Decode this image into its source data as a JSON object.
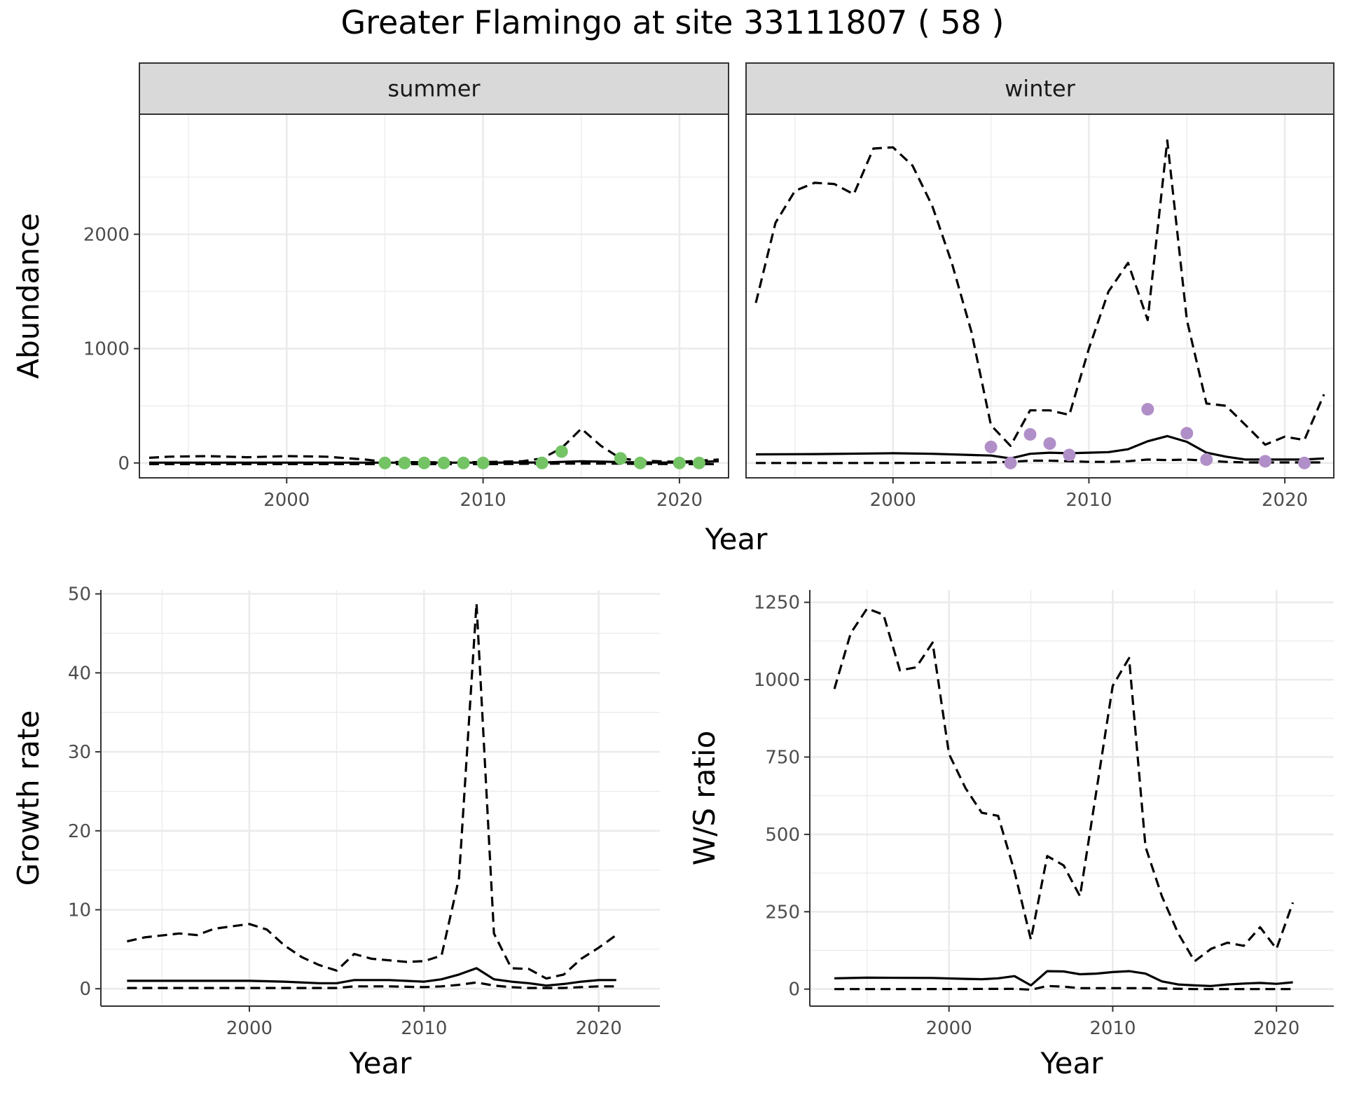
{
  "title": "Greater Flamingo at site 33111807 ( 58 )",
  "colors": {
    "summer_points": "#74c365",
    "winter_points": "#b08fc8",
    "strip_fill": "#d9d9d9"
  },
  "chart_data": [
    {
      "type": "line",
      "panel": "summer",
      "strip_label": "summer",
      "xlabel": "Year",
      "ylabel": "Abundance",
      "xlim": [
        1992.5,
        2022.5
      ],
      "ylim": [
        -130,
        3050
      ],
      "x_ticks": [
        2000,
        2010,
        2020
      ],
      "y_ticks": [
        0,
        1000,
        2000
      ],
      "grid": true,
      "series": [
        {
          "style": "solid",
          "x": [
            1993,
            1996,
            2000,
            2005,
            2010,
            2013,
            2014,
            2015,
            2016,
            2017,
            2018,
            2020,
            2022
          ],
          "y": [
            3,
            3,
            3,
            3,
            3,
            4,
            10,
            15,
            12,
            8,
            5,
            3,
            15
          ]
        },
        {
          "style": "dashed",
          "x": [
            1993,
            1994,
            1996,
            1998,
            2000,
            2002,
            2004,
            2005,
            2008,
            2010,
            2012,
            2013,
            2014,
            2015,
            2016,
            2017,
            2018,
            2020,
            2022
          ],
          "y": [
            45,
            55,
            60,
            50,
            60,
            55,
            30,
            10,
            5,
            8,
            15,
            40,
            130,
            300,
            150,
            40,
            20,
            10,
            30
          ]
        },
        {
          "style": "dashed",
          "x": [
            1993,
            2000,
            2010,
            2014,
            2016,
            2020,
            2022
          ],
          "y": [
            -10,
            -10,
            -10,
            -5,
            -5,
            -10,
            -10
          ]
        },
        {
          "style": "points",
          "x": [
            2005,
            2006,
            2007,
            2008,
            2009,
            2010,
            2013,
            2014,
            2017,
            2018,
            2020,
            2021
          ],
          "y": [
            0,
            0,
            0,
            0,
            0,
            0,
            0,
            100,
            40,
            0,
            0,
            0
          ]
        }
      ]
    },
    {
      "type": "line",
      "panel": "winter",
      "strip_label": "winter",
      "xlabel": "Year",
      "ylabel": "",
      "xlim": [
        1992.5,
        2022.5
      ],
      "ylim": [
        -130,
        3050
      ],
      "x_ticks": [
        2000,
        2010,
        2020
      ],
      "y_ticks": [
        0,
        1000,
        2000
      ],
      "grid": true,
      "series": [
        {
          "style": "solid",
          "x": [
            1993,
            1996,
            2000,
            2002,
            2004,
            2005,
            2006,
            2007,
            2008,
            2009,
            2010,
            2011,
            2012,
            2013,
            2014,
            2015,
            2016,
            2017,
            2018,
            2019,
            2020,
            2021,
            2022
          ],
          "y": [
            75,
            78,
            85,
            80,
            70,
            65,
            40,
            80,
            90,
            85,
            90,
            95,
            120,
            190,
            235,
            185,
            90,
            55,
            30,
            30,
            30,
            30,
            40
          ]
        },
        {
          "style": "dashed",
          "x": [
            1993,
            1994,
            1995,
            1996,
            1997,
            1998,
            1999,
            2000,
            2001,
            2002,
            2003,
            2004,
            2005,
            2006,
            2007,
            2008,
            2009,
            2010,
            2011,
            2012,
            2013,
            2014,
            2015,
            2016,
            2017,
            2018,
            2019,
            2020,
            2021,
            2022
          ],
          "y": [
            1400,
            2100,
            2380,
            2450,
            2440,
            2350,
            2750,
            2760,
            2600,
            2250,
            1750,
            1150,
            330,
            150,
            460,
            460,
            420,
            1000,
            1500,
            1750,
            1250,
            2820,
            1250,
            520,
            500,
            330,
            160,
            230,
            200,
            600
          ]
        },
        {
          "style": "dashed",
          "x": [
            1993,
            2000,
            2005,
            2006,
            2007,
            2008,
            2009,
            2010,
            2011,
            2012,
            2013,
            2014,
            2015,
            2016,
            2017,
            2018,
            2020,
            2022
          ],
          "y": [
            0,
            0,
            5,
            10,
            20,
            20,
            15,
            10,
            10,
            15,
            30,
            25,
            30,
            20,
            10,
            5,
            5,
            5
          ]
        },
        {
          "style": "points",
          "x": [
            2005,
            2006,
            2007,
            2008,
            2009,
            2013,
            2015,
            2016,
            2019,
            2021
          ],
          "y": [
            140,
            0,
            250,
            170,
            70,
            470,
            260,
            30,
            15,
            0
          ]
        }
      ]
    },
    {
      "type": "line",
      "panel": "growth",
      "xlabel": "Year",
      "ylabel": "Growth rate",
      "xlim": [
        1991.5,
        2023.5
      ],
      "ylim": [
        -2.2,
        50.5
      ],
      "x_ticks": [
        2000,
        2010,
        2020
      ],
      "y_ticks": [
        0,
        10,
        20,
        30,
        40,
        50
      ],
      "grid": true,
      "series": [
        {
          "style": "solid",
          "x": [
            1993,
            1995,
            2000,
            2002,
            2004,
            2005,
            2006,
            2008,
            2010,
            2011,
            2012,
            2013,
            2014,
            2015,
            2016,
            2017,
            2018,
            2019,
            2020,
            2021
          ],
          "y": [
            1,
            1,
            1,
            0.9,
            0.7,
            0.7,
            1.1,
            1.1,
            0.9,
            1.2,
            1.8,
            2.6,
            1.2,
            0.9,
            0.7,
            0.4,
            0.6,
            0.9,
            1.1,
            1.1
          ]
        },
        {
          "style": "dashed",
          "x": [
            1993,
            1994,
            1996,
            1997,
            1998,
            2000,
            2001,
            2002,
            2003,
            2004,
            2005,
            2006,
            2007,
            2008,
            2009,
            2010,
            2011,
            2012,
            2013,
            2014,
            2015,
            2016,
            2017,
            2018,
            2019,
            2020,
            2021
          ],
          "y": [
            6,
            6.5,
            7,
            6.8,
            7.6,
            8.2,
            7.5,
            5.5,
            4,
            3,
            2.3,
            4.4,
            3.8,
            3.6,
            3.4,
            3.5,
            4.2,
            14,
            48.8,
            7,
            2.6,
            2.5,
            1.3,
            1.8,
            3.8,
            5.2,
            6.8
          ]
        },
        {
          "style": "dashed",
          "x": [
            1993,
            1996,
            2000,
            2003,
            2005,
            2006,
            2008,
            2010,
            2011,
            2012,
            2013,
            2014,
            2015,
            2016,
            2017,
            2018,
            2019,
            2020,
            2021
          ],
          "y": [
            0.1,
            0.1,
            0.1,
            0.1,
            0.1,
            0.3,
            0.3,
            0.2,
            0.3,
            0.5,
            0.8,
            0.4,
            0.2,
            0.1,
            0.1,
            0.1,
            0.2,
            0.3,
            0.3
          ]
        }
      ]
    },
    {
      "type": "line",
      "panel": "ws_ratio",
      "xlabel": "Year",
      "ylabel": "W/S ratio",
      "xlim": [
        1991.5,
        2023.5
      ],
      "ylim": [
        -55,
        1290
      ],
      "x_ticks": [
        2000,
        2010,
        2020
      ],
      "y_ticks": [
        0,
        250,
        500,
        750,
        1000,
        1250
      ],
      "grid": true,
      "series": [
        {
          "style": "solid",
          "x": [
            1993,
            1995,
            1999,
            2001,
            2002,
            2003,
            2004,
            2005,
            2006,
            2007,
            2008,
            2009,
            2010,
            2011,
            2012,
            2013,
            2014,
            2015,
            2016,
            2017,
            2018,
            2019,
            2020,
            2021
          ],
          "y": [
            35,
            37,
            36,
            33,
            32,
            35,
            42,
            12,
            58,
            57,
            48,
            50,
            55,
            58,
            50,
            25,
            15,
            12,
            10,
            15,
            18,
            20,
            17,
            22
          ]
        },
        {
          "style": "dashed",
          "x": [
            1993,
            1994,
            1995,
            1996,
            1997,
            1998,
            1999,
            2000,
            2001,
            2002,
            2003,
            2004,
            2005,
            2006,
            2007,
            2008,
            2009,
            2010,
            2011,
            2012,
            2013,
            2014,
            2015,
            2016,
            2017,
            2018,
            2019,
            2020,
            2021
          ],
          "y": [
            970,
            1150,
            1230,
            1210,
            1030,
            1040,
            1120,
            760,
            650,
            570,
            560,
            380,
            160,
            430,
            400,
            300,
            640,
            980,
            1070,
            460,
            300,
            180,
            90,
            130,
            150,
            140,
            200,
            130,
            280
          ]
        },
        {
          "style": "dashed",
          "x": [
            1993,
            1998,
            2004,
            2005,
            2006,
            2007,
            2008,
            2010,
            2012,
            2015,
            2017,
            2019,
            2021
          ],
          "y": [
            0,
            0,
            1,
            -2,
            10,
            8,
            3,
            3,
            3,
            0,
            0,
            0,
            0
          ]
        }
      ]
    }
  ]
}
